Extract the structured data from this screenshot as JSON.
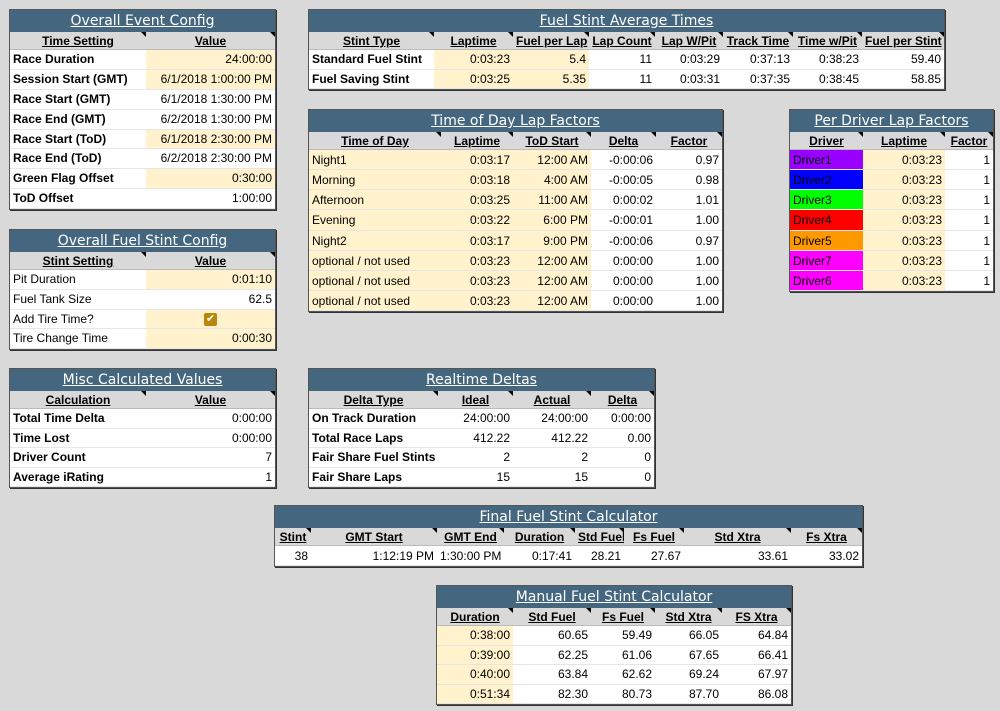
{
  "panels": [
    {
      "title": "Overall Event Config",
      "columns": [
        "Time Setting",
        "Value"
      ],
      "rows": [
        [
          "Race Duration",
          "24:00:00"
        ],
        [
          "Session Start (GMT)",
          "6/1/2018 1:00:00 PM"
        ],
        [
          "Race Start (GMT)",
          "6/1/2018 1:30:00 PM"
        ],
        [
          "Race End (GMT)",
          "6/2/2018 1:30:00 PM"
        ],
        [
          "Race Start (ToD)",
          "6/1/2018 2:30:00 PM"
        ],
        [
          "Race End (ToD)",
          "6/2/2018 2:30:00 PM"
        ],
        [
          "Green Flag Offset",
          "0:30:00"
        ],
        [
          "ToD Offset",
          "1:00:00"
        ]
      ]
    },
    {
      "title": "Overall Fuel Stint Config",
      "columns": [
        "Stint Setting",
        "Value"
      ],
      "rows": [
        [
          "Pit Duration",
          "0:01:10"
        ],
        [
          "Fuel Tank Size",
          "62.5"
        ],
        [
          "Add Tire Time?",
          true
        ],
        [
          "Tire Change Time",
          "0:00:30"
        ]
      ]
    },
    {
      "title": "Misc Calculated Values",
      "columns": [
        "Calculation",
        "Value"
      ],
      "rows": [
        [
          "Total Time Delta",
          "0:00:00"
        ],
        [
          "Time Lost",
          "0:00:00"
        ],
        [
          "Driver Count",
          "7"
        ],
        [
          "Average iRating",
          "1"
        ]
      ]
    },
    {
      "title": "Fuel Stint Average Times",
      "columns": [
        "Stint Type",
        "Laptime",
        "Fuel per Lap",
        "Lap Count",
        "Lap W/Pit",
        "Track Time",
        "Time w/Pit",
        "Fuel per Stint"
      ],
      "rows": [
        [
          "Standard Fuel Stint",
          "0:03:23",
          "5.4",
          "11",
          "0:03:29",
          "0:37:13",
          "0:38:23",
          "59.40"
        ],
        [
          "Fuel Saving Stint",
          "0:03:25",
          "5.35",
          "11",
          "0:03:31",
          "0:37:35",
          "0:38:45",
          "58.85"
        ]
      ]
    },
    {
      "title": "Time of Day Lap Factors",
      "columns": [
        "Time of Day",
        "Laptime",
        "ToD Start",
        "Delta",
        "Factor"
      ],
      "rows": [
        [
          "Night1",
          "0:03:17",
          "12:00 AM",
          "-0:00:06",
          "0.97"
        ],
        [
          "Morning",
          "0:03:18",
          "4:00 AM",
          "-0:00:05",
          "0.98"
        ],
        [
          "Afternoon",
          "0:03:25",
          "11:00 AM",
          "0:00:02",
          "1.01"
        ],
        [
          "Evening",
          "0:03:22",
          "6:00 PM",
          "-0:00:01",
          "1.00"
        ],
        [
          "Night2",
          "0:03:17",
          "9:00 PM",
          "-0:00:06",
          "0.97"
        ],
        [
          "optional / not used",
          "0:03:23",
          "12:00 AM",
          "0:00:00",
          "1.00"
        ],
        [
          "optional / not used",
          "0:03:23",
          "12:00 AM",
          "0:00:00",
          "1.00"
        ],
        [
          "optional / not used",
          "0:03:23",
          "12:00 AM",
          "0:00:00",
          "1.00"
        ]
      ]
    },
    {
      "title": "Per Driver Lap Factors",
      "columns": [
        "Driver",
        "Laptime",
        "Factor"
      ],
      "row_colors": [
        "#9900ff",
        "#0000ff",
        "#00ff00",
        "#ff0000",
        "#ff9900",
        "#ff00ff",
        "#ff00ff"
      ],
      "rows": [
        [
          "Driver1",
          "0:03:23",
          "1"
        ],
        [
          "Driver2",
          "0:03:23",
          "1"
        ],
        [
          "Driver3",
          "0:03:23",
          "1"
        ],
        [
          "Driver4",
          "0:03:23",
          "1"
        ],
        [
          "Driver5",
          "0:03:23",
          "1"
        ],
        [
          "Driver7",
          "0:03:23",
          "1"
        ],
        [
          "Driver6",
          "0:03:23",
          "1"
        ]
      ]
    },
    {
      "title": "Realtime Deltas",
      "columns": [
        "Delta Type",
        "Ideal",
        "Actual",
        "Delta"
      ],
      "rows": [
        [
          "On Track Duration",
          "24:00:00",
          "24:00:00",
          "0:00:00"
        ],
        [
          "Total Race Laps",
          "412.22",
          "412.22",
          "0.00"
        ],
        [
          "Fair Share Fuel Stints",
          "2",
          "2",
          "0"
        ],
        [
          "Fair Share Laps",
          "15",
          "15",
          "0"
        ]
      ]
    },
    {
      "title": "Final Fuel Stint Calculator",
      "columns": [
        "Stint",
        "GMT Start",
        "GMT End",
        "Duration",
        "Std Fuel",
        "Fs Fuel",
        "Std Xtra",
        "Fs Xtra"
      ],
      "rows": [
        [
          "38",
          "1:12:19 PM",
          "1:30:00 PM",
          "0:17:41",
          "28.21",
          "27.67",
          "33.61",
          "33.02"
        ]
      ]
    },
    {
      "title": "Manual Fuel Stint Calculator",
      "columns": [
        "Duration",
        "Std Fuel",
        "Fs Fuel",
        "Std Xtra",
        "FS Xtra"
      ],
      "rows": [
        [
          "0:38:00",
          "60.65",
          "59.49",
          "66.05",
          "64.84"
        ],
        [
          "0:39:00",
          "62.25",
          "61.06",
          "67.65",
          "66.41"
        ],
        [
          "0:40:00",
          "63.84",
          "62.62",
          "69.24",
          "67.97"
        ],
        [
          "0:51:34",
          "82.30",
          "80.73",
          "87.70",
          "86.08"
        ]
      ]
    }
  ]
}
